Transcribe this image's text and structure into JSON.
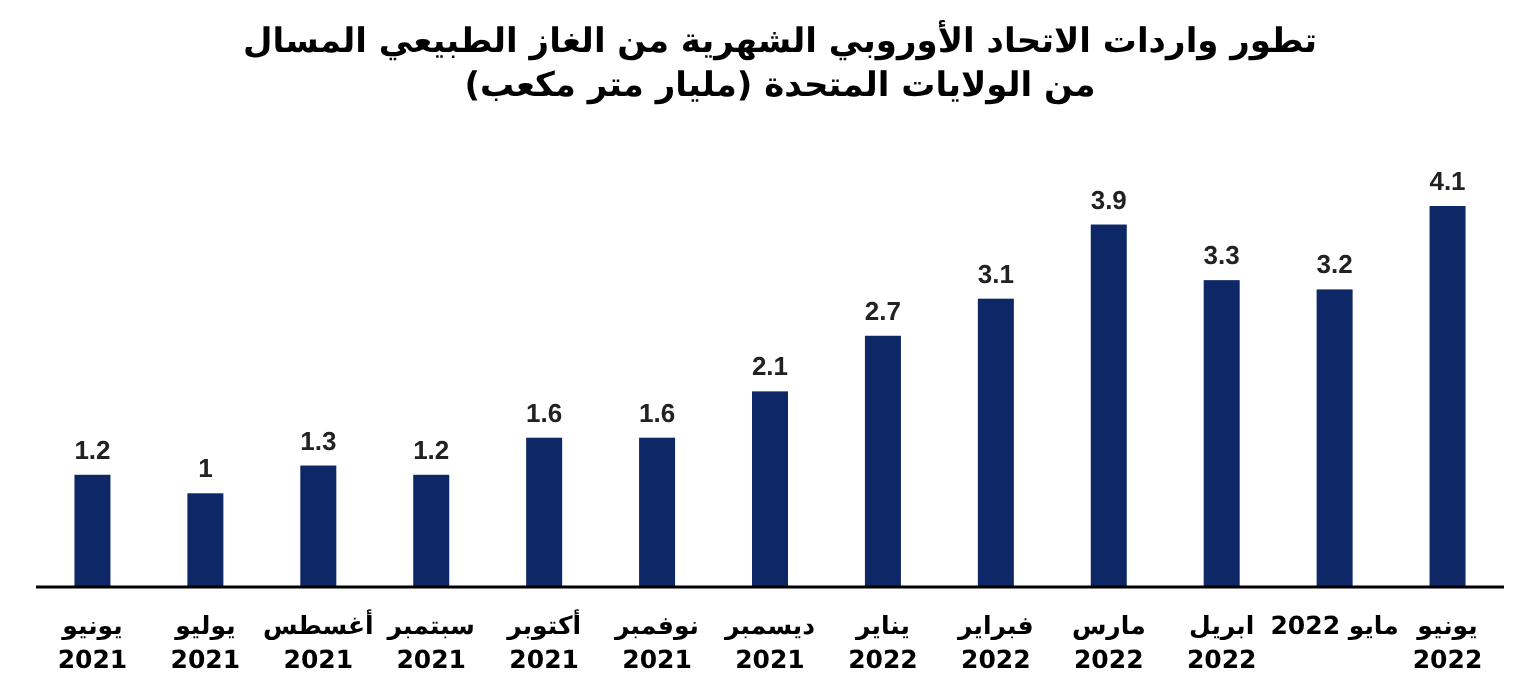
{
  "chart_data": {
    "type": "bar",
    "title": "تطور واردات الاتحاد الأوروبي الشهرية من الغاز الطبيعي المسال من الولايات المتحدة (مليار متر مكعب)",
    "categories": [
      "يونيو\n2021",
      "يوليو\n2021",
      "أغسطس\n2021",
      "سبتمبر\n2021",
      "أكتوبر\n2021",
      "نوفمبر\n2021",
      "ديسمبر\n2021",
      "يناير\n2022",
      "فبراير\n2022",
      "مارس\n2022",
      "ابريل\n2022",
      "مايو 2022",
      "يونيو\n2022"
    ],
    "values": [
      1.2,
      1,
      1.3,
      1.2,
      1.6,
      1.6,
      2.1,
      2.7,
      3.1,
      3.9,
      3.3,
      3.2,
      4.1
    ],
    "color": "#0e2766",
    "data_labels": true
  }
}
